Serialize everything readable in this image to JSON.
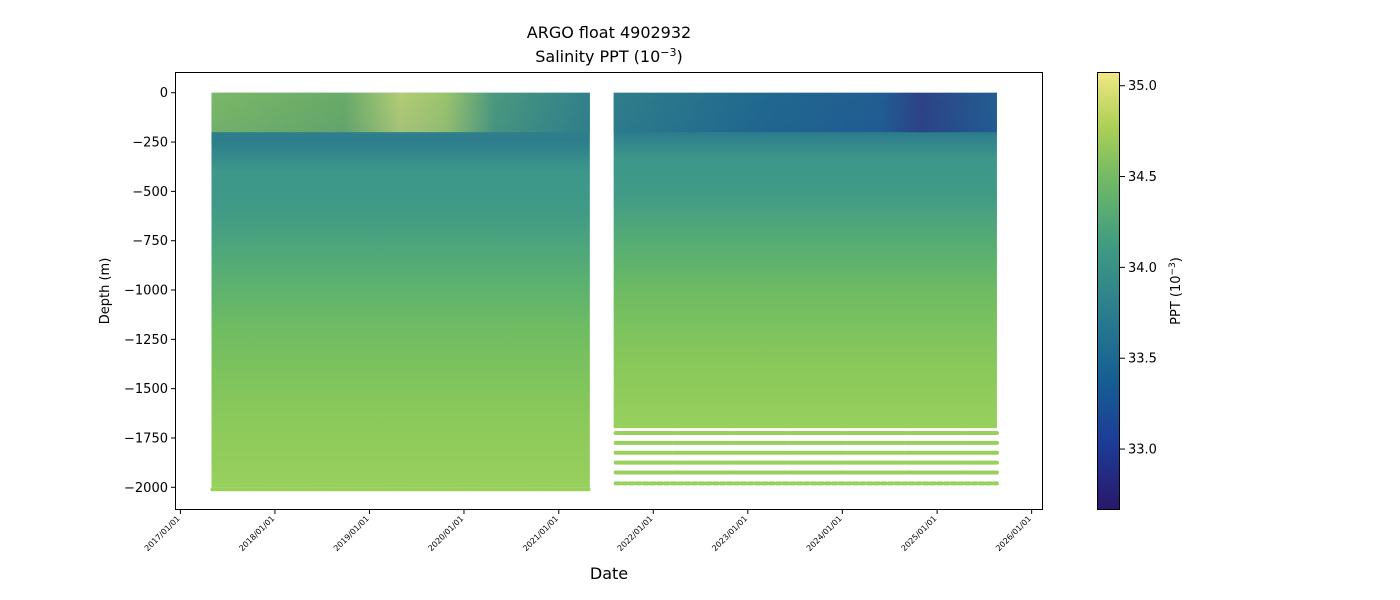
{
  "chart_data": {
    "type": "heatmap",
    "title": "ARGO float 4902932",
    "subtitle_prefix": "Salinity PPT (10",
    "subtitle_exp": "−3",
    "subtitle_suffix": ")",
    "xlabel": "Date",
    "ylabel": "Depth (m)",
    "colorbar_label_prefix": "PPT (10",
    "colorbar_label_exp": "−3",
    "colorbar_label_suffix": ")",
    "colormap": "haline",
    "xlim": [
      "2016-12-15",
      "2026-02-10"
    ],
    "ylim": [
      -2110,
      100
    ],
    "clim": [
      32.67,
      35.07
    ],
    "x_ticks": [
      "2017/01/01",
      "2018/01/01",
      "2019/01/01",
      "2020/01/01",
      "2021/01/01",
      "2022/01/01",
      "2023/01/01",
      "2024/01/01",
      "2025/01/01",
      "2026/01/01"
    ],
    "y_ticks": [
      0,
      -250,
      -500,
      -750,
      -1000,
      -1250,
      -1500,
      -1750,
      -2000
    ],
    "colorbar_ticks": [
      33.0,
      33.5,
      34.0,
      34.5,
      35.0
    ],
    "segments": [
      {
        "start": "2017-05-01",
        "end": "2021-05-01",
        "max_depth": -2000,
        "continuous_to": -2000
      },
      {
        "start": "2021-08-01",
        "end": "2025-08-20",
        "max_depth": -1980,
        "continuous_to": -1700,
        "sparse_depths": [
          -1725,
          -1775,
          -1825,
          -1875,
          -1925,
          -1980
        ]
      }
    ],
    "salinity_profile": [
      {
        "depth": 0,
        "salinity": 34.1
      },
      {
        "depth": -100,
        "salinity": 33.9
      },
      {
        "depth": -200,
        "salinity": 33.8
      },
      {
        "depth": -400,
        "salinity": 33.9
      },
      {
        "depth": -600,
        "salinity": 34.1
      },
      {
        "depth": -800,
        "salinity": 34.3
      },
      {
        "depth": -1000,
        "salinity": 34.45
      },
      {
        "depth": -1250,
        "salinity": 34.55
      },
      {
        "depth": -1500,
        "salinity": 34.6
      },
      {
        "depth": -2000,
        "salinity": 34.65
      }
    ],
    "surface_notes": [
      {
        "start": "2017-05-01",
        "end": "2019-06-01",
        "surface_salinity": 34.9
      },
      {
        "start": "2019-06-01",
        "end": "2021-05-01",
        "surface_salinity": 33.9
      },
      {
        "start": "2021-08-01",
        "end": "2024-01-01",
        "surface_salinity": 33.4
      },
      {
        "start": "2024-01-01",
        "end": "2025-08-20",
        "surface_salinity": 32.9
      }
    ],
    "grid": false,
    "legend": "none"
  }
}
